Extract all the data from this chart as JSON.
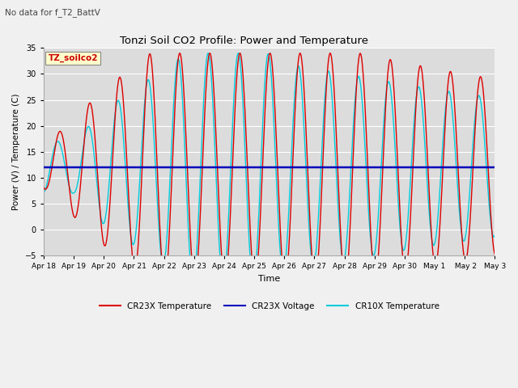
{
  "title": "Tonzi Soil CO2 Profile: Power and Temperature",
  "subtitle": "No data for f_T2_BattV",
  "ylabel": "Power (V) / Temperature (C)",
  "xlabel": "Time",
  "ylim": [
    -5,
    35
  ],
  "yticks": [
    -5,
    0,
    5,
    10,
    15,
    20,
    25,
    30,
    35
  ],
  "x_labels": [
    "Apr 18",
    "Apr 19",
    "Apr 20",
    "Apr 21",
    "Apr 22",
    "Apr 23",
    "Apr 24",
    "Apr 25",
    "Apr 26",
    "Apr 27",
    "Apr 28",
    "Apr 29",
    "Apr 30",
    "May 1",
    " May 2",
    "May 3"
  ],
  "voltage_value": 12.0,
  "legend_labels": [
    "CR23X Temperature",
    "CR23X Voltage",
    "CR10X Temperature"
  ],
  "cr23x_color": "#dd0000",
  "cr10x_color": "#00ccdd",
  "voltage_color": "#0000bb",
  "annotation_text": "TZ_soilco2",
  "fig_facecolor": "#f0f0f0",
  "ax_facecolor": "#dcdcdc"
}
